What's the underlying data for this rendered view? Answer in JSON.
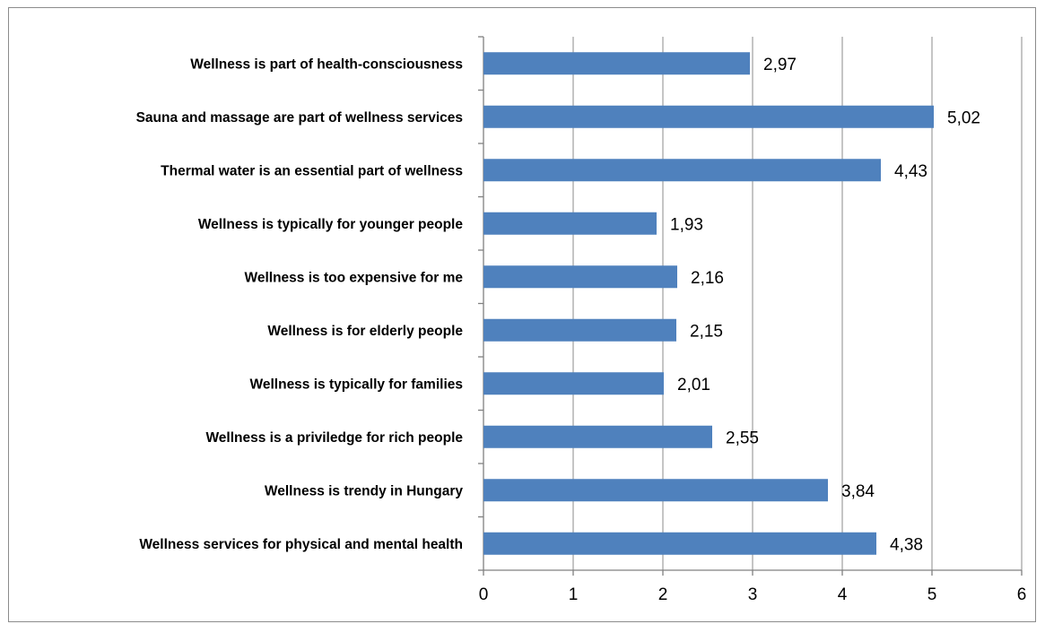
{
  "chart_data": {
    "type": "bar",
    "orientation": "horizontal",
    "categories": [
      "Wellness is part of health-consciousness",
      "Sauna and massage are part of wellness services",
      "Thermal water is an essential part of wellness",
      "Wellness is typically for younger people",
      "Wellness is too expensive for me",
      "Wellness is for elderly people",
      "Wellness is typically for families",
      "Wellness is a priviledge for rich people",
      "Wellness is trendy in Hungary",
      "Wellness services for physical and mental health"
    ],
    "values": [
      2.97,
      5.02,
      4.43,
      1.93,
      2.16,
      2.15,
      2.01,
      2.55,
      3.84,
      4.38
    ],
    "value_labels": [
      "2,97",
      "5,02",
      "4,43",
      "1,93",
      "2,16",
      "2,15",
      "2,01",
      "2,55",
      "3,84",
      "4,38"
    ],
    "xlim": [
      0,
      6
    ],
    "xticks": [
      "0",
      "1",
      "2",
      "3",
      "4",
      "5",
      "6"
    ],
    "grid": "vertical",
    "bar_color": "#4f81bd",
    "grid_color": "#a6a6a6"
  }
}
